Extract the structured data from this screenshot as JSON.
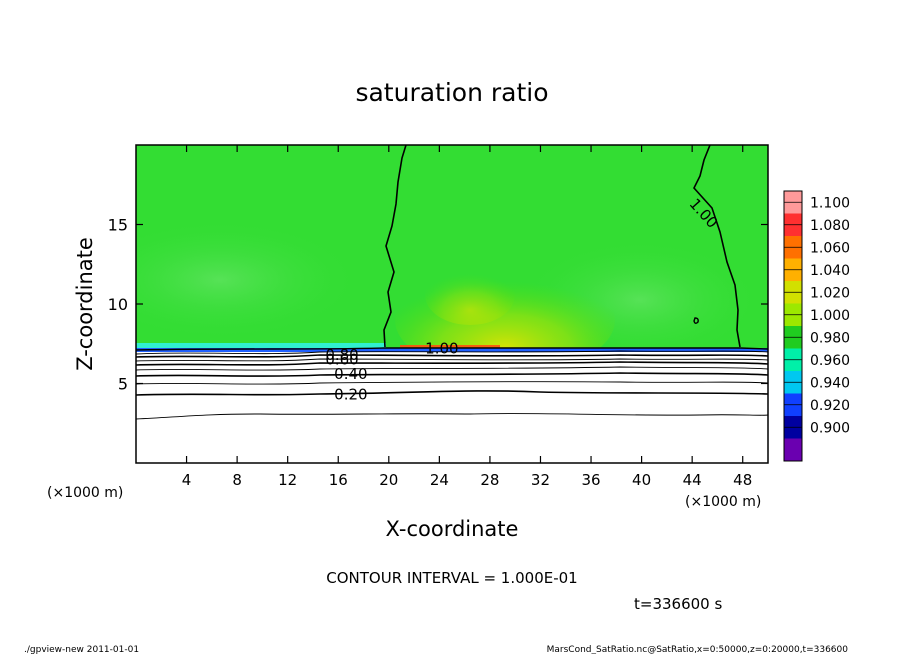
{
  "chart_data": {
    "type": "contour",
    "title": "saturation ratio",
    "xlabel": "X-coordinate",
    "ylabel": "Z-coordinate",
    "x_unit_left": "(×1000 m)",
    "x_unit_right": "(×1000 m)",
    "xlim": [
      0,
      50
    ],
    "ylim": [
      0,
      20
    ],
    "x_ticks": [
      {
        "value": 4,
        "label": "4"
      },
      {
        "value": 8,
        "label": "8"
      },
      {
        "value": 12,
        "label": "12"
      },
      {
        "value": 16,
        "label": "16"
      },
      {
        "value": 20,
        "label": "20"
      },
      {
        "value": 24,
        "label": "24"
      },
      {
        "value": 28,
        "label": "28"
      },
      {
        "value": 32,
        "label": "32"
      },
      {
        "value": 36,
        "label": "36"
      },
      {
        "value": 40,
        "label": "40"
      },
      {
        "value": 44,
        "label": "44"
      },
      {
        "value": 48,
        "label": "48"
      }
    ],
    "y_ticks": [
      {
        "value": 5,
        "label": "5"
      },
      {
        "value": 10,
        "label": "10"
      },
      {
        "value": 15,
        "label": "15"
      }
    ],
    "contour_interval_text": "CONTOUR INTERVAL = 1.000E-01",
    "time_text": "t=336600 s",
    "contour_labels": [
      {
        "text": "1.00",
        "x": 44.9,
        "z": 15.7,
        "angle": 48
      },
      {
        "text": "1.00",
        "x": 24.2,
        "z": 7.2,
        "angle": 0
      },
      {
        "text": "0.80",
        "x": 16.3,
        "z": 6.8,
        "angle": 0
      },
      {
        "text": "0.60",
        "x": 16.3,
        "z": 6.5,
        "angle": 0
      },
      {
        "text": "0.40",
        "x": 17.0,
        "z": 5.6,
        "angle": 0
      },
      {
        "text": "0.20",
        "x": 17.0,
        "z": 4.3,
        "angle": 0
      }
    ],
    "colorbar": {
      "levels": [
        "1.100",
        "1.080",
        "1.060",
        "1.040",
        "1.020",
        "1.000",
        "0.980",
        "0.960",
        "0.940",
        "0.920",
        "0.900"
      ],
      "colors": [
        "#ff9a9a",
        "#ff3030",
        "#ff7000",
        "#ffb000",
        "#d2e000",
        "#9ce800",
        "#20cc20",
        "#00f0a8",
        "#00c8f0",
        "#1040ff",
        "#0000a0",
        "#6a00b0"
      ]
    },
    "colors": {
      "background_green": "#33dd33",
      "layer_cyan": "#30f0d0",
      "layer_blue": "#2060ff",
      "highlight_yellow": "#c8e800",
      "highlight_red": "#ff5010"
    }
  },
  "footer": {
    "left": "./gpview-new   2011-01-01",
    "right": "MarsCond_SatRatio.nc@SatRatio,x=0:50000,z=0:20000,t=336600"
  }
}
